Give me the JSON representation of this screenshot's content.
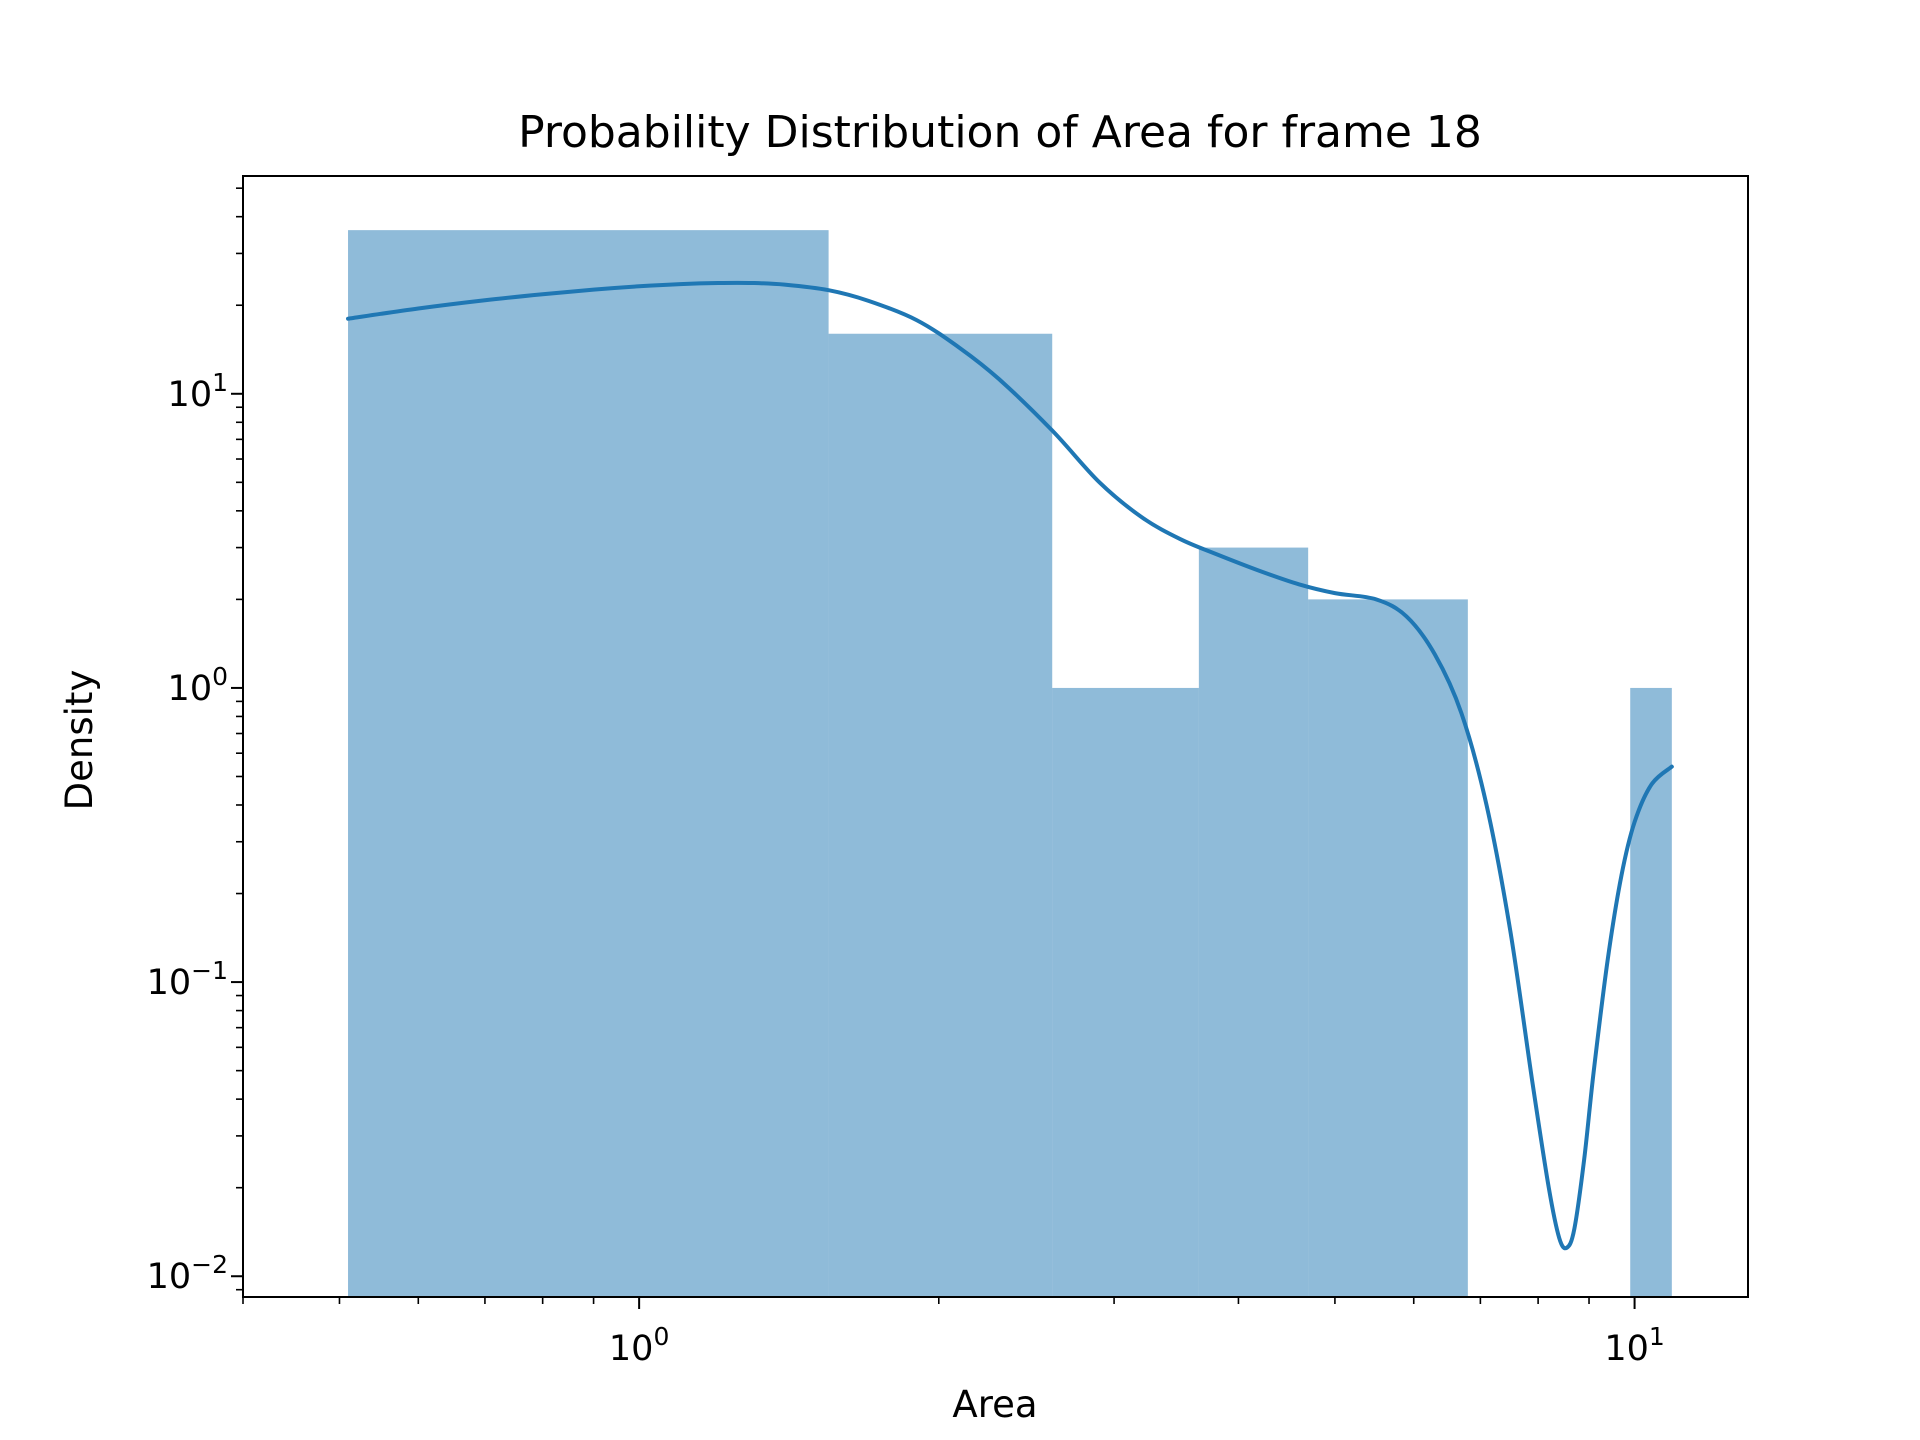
{
  "chart_data": {
    "type": "bar",
    "title": "Probability Distribution of Area for frame 18",
    "xlabel": "Area",
    "ylabel": "Density",
    "xscale": "log",
    "yscale": "log",
    "xlim": [
      0.4,
      13.0
    ],
    "ylim": [
      0.0085,
      55
    ],
    "grid": false,
    "legend": "none",
    "colors": {
      "bars": "#1f77b4",
      "bar_alpha": 0.5,
      "kde": "#1f77b4",
      "axes": "#000000"
    },
    "x_ticks": [
      {
        "base": "10",
        "exp": "0",
        "value": 1
      },
      {
        "base": "10",
        "exp": "1",
        "value": 10
      }
    ],
    "y_ticks": [
      {
        "base": "10",
        "exp": "1",
        "value": 10
      },
      {
        "base": "10",
        "exp": "0",
        "value": 1
      },
      {
        "base": "10",
        "exp": "−1",
        "value": 0.1
      },
      {
        "base": "10",
        "exp": "−2",
        "value": 0.01
      }
    ],
    "bins": [
      {
        "x0": 0.51,
        "x1": 1.55,
        "density": 36
      },
      {
        "x0": 1.55,
        "x1": 2.6,
        "density": 16
      },
      {
        "x0": 2.6,
        "x1": 3.65,
        "density": 1
      },
      {
        "x0": 3.65,
        "x1": 4.7,
        "density": 3
      },
      {
        "x0": 4.7,
        "x1": 6.8,
        "density": 2
      },
      {
        "x0": 9.9,
        "x1": 10.9,
        "density": 1
      }
    ],
    "kde": {
      "x": [
        0.51,
        0.6,
        0.7,
        0.8,
        0.9,
        1.0,
        1.1,
        1.2,
        1.3,
        1.4,
        1.55,
        1.7,
        1.9,
        2.1,
        2.3,
        2.6,
        2.9,
        3.2,
        3.5,
        3.8,
        4.2,
        4.6,
        5.0,
        5.5,
        5.9,
        6.3,
        6.7,
        7.1,
        7.5,
        7.9,
        8.2,
        8.4,
        8.55,
        8.7,
        8.9,
        9.1,
        9.4,
        9.7,
        10.0,
        10.4,
        10.9
      ],
      "y": [
        18,
        19.5,
        20.8,
        21.8,
        22.6,
        23.2,
        23.6,
        23.8,
        23.8,
        23.5,
        22.5,
        20.7,
        17.8,
        14.3,
        11.2,
        7.5,
        5.0,
        3.8,
        3.2,
        2.85,
        2.5,
        2.25,
        2.1,
        2.0,
        1.75,
        1.3,
        0.82,
        0.4,
        0.15,
        0.045,
        0.02,
        0.0135,
        0.0125,
        0.0145,
        0.025,
        0.05,
        0.12,
        0.23,
        0.35,
        0.47,
        0.54
      ]
    }
  }
}
